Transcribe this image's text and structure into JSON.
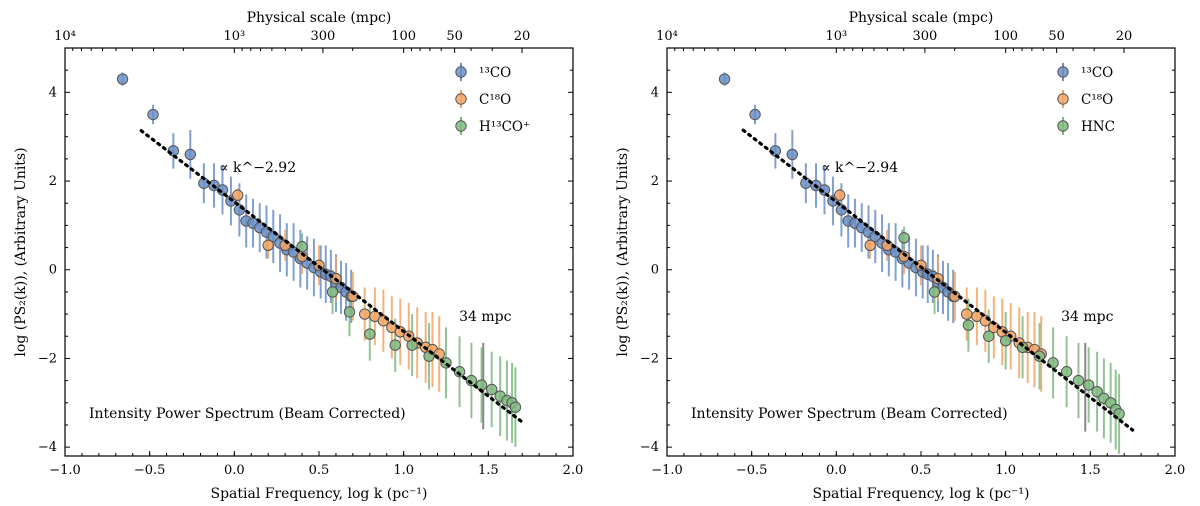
{
  "chart_data": [
    {
      "type": "scatter",
      "title": "",
      "xlabel": "Spatial Frequency, log k (pc⁻¹)",
      "ylabel": "log (PS₂(k)), (Arbitrary Units)",
      "top_xlabel": "Physical scale (mpc)",
      "xlim": [
        -1.0,
        2.0
      ],
      "ylim": [
        -4.2,
        5.0
      ],
      "x_ticks": [
        -1.0,
        -0.5,
        0.0,
        0.5,
        1.0,
        1.5,
        2.0
      ],
      "x_tick_labels": [
        "−1.0",
        "−0.5",
        "0.0",
        "0.5",
        "1.0",
        "1.5",
        "2.0"
      ],
      "y_ticks": [
        -4,
        -2,
        0,
        2,
        4
      ],
      "y_tick_labels": [
        "−4",
        "−2",
        "0",
        "2",
        "4"
      ],
      "top_ticks": [
        {
          "x": -1.0,
          "label": "10⁴"
        },
        {
          "x": 0.0,
          "label": "10³"
        },
        {
          "x": 0.523,
          "label": "300"
        },
        {
          "x": 1.0,
          "label": "100"
        },
        {
          "x": 1.301,
          "label": "50"
        },
        {
          "x": 1.699,
          "label": "20"
        }
      ],
      "annotation_text": "Intensity Power Spectrum (Beam Corrected)",
      "fit": {
        "label": "∝ k^−2.92",
        "slope": -2.92,
        "intercept": 1.53,
        "x_range": [
          -0.55,
          1.7
        ]
      },
      "scale_marker": {
        "x": 1.47,
        "y_range": [
          -3.6,
          -1.65
        ],
        "label": "34 mpc"
      },
      "legend_position": "top-right",
      "series": [
        {
          "name": "13CO",
          "color": "#6a8fc7",
          "points": [
            {
              "x": -0.66,
              "y": 4.3,
              "e": 0.15
            },
            {
              "x": -0.48,
              "y": 3.5,
              "e": 0.22
            },
            {
              "x": -0.36,
              "y": 2.68,
              "e": 0.4
            },
            {
              "x": -0.26,
              "y": 2.6,
              "e": 0.55
            },
            {
              "x": -0.18,
              "y": 1.95,
              "e": 0.45
            },
            {
              "x": -0.12,
              "y": 1.9,
              "e": 0.5
            },
            {
              "x": -0.07,
              "y": 1.8,
              "e": 0.55
            },
            {
              "x": -0.02,
              "y": 1.55,
              "e": 0.55
            },
            {
              "x": 0.03,
              "y": 1.35,
              "e": 0.6
            },
            {
              "x": 0.07,
              "y": 1.1,
              "e": 0.6
            },
            {
              "x": 0.11,
              "y": 1.05,
              "e": 0.55
            },
            {
              "x": 0.15,
              "y": 0.95,
              "e": 0.55
            },
            {
              "x": 0.19,
              "y": 0.85,
              "e": 0.6
            },
            {
              "x": 0.23,
              "y": 0.75,
              "e": 0.6
            },
            {
              "x": 0.27,
              "y": 0.6,
              "e": 0.65
            },
            {
              "x": 0.31,
              "y": 0.45,
              "e": 0.6
            },
            {
              "x": 0.35,
              "y": 0.4,
              "e": 0.65
            },
            {
              "x": 0.39,
              "y": 0.25,
              "e": 0.65
            },
            {
              "x": 0.43,
              "y": 0.15,
              "e": 0.6
            },
            {
              "x": 0.47,
              "y": 0.05,
              "e": 0.65
            },
            {
              "x": 0.51,
              "y": -0.05,
              "e": 0.6
            },
            {
              "x": 0.54,
              "y": -0.1,
              "e": 0.65
            },
            {
              "x": 0.57,
              "y": -0.15,
              "e": 0.6
            },
            {
              "x": 0.6,
              "y": -0.3,
              "e": 0.65
            },
            {
              "x": 0.63,
              "y": -0.4,
              "e": 0.6
            },
            {
              "x": 0.66,
              "y": -0.5,
              "e": 0.65
            },
            {
              "x": 0.69,
              "y": -0.6,
              "e": 0.6
            }
          ]
        },
        {
          "name": "C18O",
          "color": "#f2a464",
          "points": [
            {
              "x": 0.02,
              "y": 1.68,
              "e": 0.15
            },
            {
              "x": 0.2,
              "y": 0.55,
              "e": 0.3
            },
            {
              "x": 0.3,
              "y": 0.55,
              "e": 0.35
            },
            {
              "x": 0.4,
              "y": 0.3,
              "e": 0.4
            },
            {
              "x": 0.5,
              "y": 0.1,
              "e": 0.45
            },
            {
              "x": 0.6,
              "y": -0.2,
              "e": 0.5
            },
            {
              "x": 0.7,
              "y": -0.6,
              "e": 0.55
            },
            {
              "x": 0.77,
              "y": -1.0,
              "e": 0.6
            },
            {
              "x": 0.83,
              "y": -1.05,
              "e": 0.65
            },
            {
              "x": 0.88,
              "y": -1.15,
              "e": 0.7
            },
            {
              "x": 0.93,
              "y": -1.3,
              "e": 0.7
            },
            {
              "x": 0.98,
              "y": -1.4,
              "e": 0.75
            },
            {
              "x": 1.03,
              "y": -1.5,
              "e": 0.75
            },
            {
              "x": 1.08,
              "y": -1.65,
              "e": 0.8
            },
            {
              "x": 1.13,
              "y": -1.75,
              "e": 0.8
            },
            {
              "x": 1.17,
              "y": -1.8,
              "e": 0.85
            },
            {
              "x": 1.21,
              "y": -1.9,
              "e": 0.85
            }
          ]
        },
        {
          "name": "H13CO+",
          "color": "#7fb87f",
          "points": [
            {
              "x": 0.4,
              "y": 0.52,
              "e": 0.3
            },
            {
              "x": 0.58,
              "y": -0.5,
              "e": 0.5
            },
            {
              "x": 0.68,
              "y": -0.95,
              "e": 0.55
            },
            {
              "x": 0.8,
              "y": -1.45,
              "e": 0.6
            },
            {
              "x": 0.95,
              "y": -1.7,
              "e": 0.6
            },
            {
              "x": 1.05,
              "y": -1.7,
              "e": 0.7
            },
            {
              "x": 1.15,
              "y": -1.95,
              "e": 0.75
            },
            {
              "x": 1.25,
              "y": -2.1,
              "e": 0.8
            },
            {
              "x": 1.33,
              "y": -2.3,
              "e": 0.8
            },
            {
              "x": 1.4,
              "y": -2.5,
              "e": 0.85
            },
            {
              "x": 1.46,
              "y": -2.6,
              "e": 0.85
            },
            {
              "x": 1.52,
              "y": -2.7,
              "e": 0.85
            },
            {
              "x": 1.57,
              "y": -2.85,
              "e": 0.9
            },
            {
              "x": 1.61,
              "y": -2.95,
              "e": 0.9
            },
            {
              "x": 1.64,
              "y": -3.0,
              "e": 0.9
            },
            {
              "x": 1.66,
              "y": -3.1,
              "e": 0.9
            }
          ]
        }
      ],
      "legend": [
        "¹³CO",
        "C¹⁸O",
        "H¹³CO⁺"
      ]
    },
    {
      "type": "scatter",
      "title": "",
      "xlabel": "Spatial Frequency, log k (pc⁻¹)",
      "ylabel": "log (PS₂(k)), (Arbitrary Units)",
      "top_xlabel": "Physical scale (mpc)",
      "xlim": [
        -1.0,
        2.0
      ],
      "ylim": [
        -4.2,
        5.0
      ],
      "x_ticks": [
        -1.0,
        -0.5,
        0.0,
        0.5,
        1.0,
        1.5,
        2.0
      ],
      "x_tick_labels": [
        "−1.0",
        "−0.5",
        "0.0",
        "0.5",
        "1.0",
        "1.5",
        "2.0"
      ],
      "y_ticks": [
        -4,
        -2,
        0,
        2,
        4
      ],
      "y_tick_labels": [
        "−4",
        "−2",
        "0",
        "2",
        "4"
      ],
      "top_ticks": [
        {
          "x": -1.0,
          "label": "10⁴"
        },
        {
          "x": 0.0,
          "label": "10³"
        },
        {
          "x": 0.523,
          "label": "300"
        },
        {
          "x": 1.0,
          "label": "100"
        },
        {
          "x": 1.301,
          "label": "50"
        },
        {
          "x": 1.699,
          "label": "20"
        }
      ],
      "annotation_text": "Intensity Power Spectrum (Beam Corrected)",
      "fit": {
        "label": "∝ k^−2.94",
        "slope": -2.94,
        "intercept": 1.53,
        "x_range": [
          -0.55,
          1.75
        ]
      },
      "scale_marker": {
        "x": 1.47,
        "y_range": [
          -3.65,
          -1.65
        ],
        "label": "34 mpc"
      },
      "legend_position": "top-right",
      "series": [
        {
          "name": "13CO",
          "color": "#6a8fc7",
          "points": [
            {
              "x": -0.66,
              "y": 4.3,
              "e": 0.15
            },
            {
              "x": -0.48,
              "y": 3.5,
              "e": 0.22
            },
            {
              "x": -0.36,
              "y": 2.68,
              "e": 0.4
            },
            {
              "x": -0.26,
              "y": 2.6,
              "e": 0.55
            },
            {
              "x": -0.18,
              "y": 1.95,
              "e": 0.45
            },
            {
              "x": -0.12,
              "y": 1.9,
              "e": 0.5
            },
            {
              "x": -0.07,
              "y": 1.8,
              "e": 0.55
            },
            {
              "x": -0.02,
              "y": 1.55,
              "e": 0.55
            },
            {
              "x": 0.03,
              "y": 1.35,
              "e": 0.6
            },
            {
              "x": 0.07,
              "y": 1.1,
              "e": 0.6
            },
            {
              "x": 0.11,
              "y": 1.05,
              "e": 0.55
            },
            {
              "x": 0.15,
              "y": 0.95,
              "e": 0.55
            },
            {
              "x": 0.19,
              "y": 0.85,
              "e": 0.6
            },
            {
              "x": 0.23,
              "y": 0.75,
              "e": 0.6
            },
            {
              "x": 0.27,
              "y": 0.6,
              "e": 0.65
            },
            {
              "x": 0.31,
              "y": 0.45,
              "e": 0.6
            },
            {
              "x": 0.35,
              "y": 0.4,
              "e": 0.65
            },
            {
              "x": 0.39,
              "y": 0.25,
              "e": 0.65
            },
            {
              "x": 0.43,
              "y": 0.15,
              "e": 0.6
            },
            {
              "x": 0.47,
              "y": 0.05,
              "e": 0.65
            },
            {
              "x": 0.51,
              "y": -0.05,
              "e": 0.6
            },
            {
              "x": 0.54,
              "y": -0.1,
              "e": 0.65
            },
            {
              "x": 0.57,
              "y": -0.15,
              "e": 0.6
            },
            {
              "x": 0.6,
              "y": -0.3,
              "e": 0.65
            },
            {
              "x": 0.63,
              "y": -0.4,
              "e": 0.6
            },
            {
              "x": 0.66,
              "y": -0.5,
              "e": 0.65
            },
            {
              "x": 0.69,
              "y": -0.6,
              "e": 0.6
            }
          ]
        },
        {
          "name": "C18O",
          "color": "#f2a464",
          "points": [
            {
              "x": 0.02,
              "y": 1.68,
              "e": 0.15
            },
            {
              "x": 0.2,
              "y": 0.55,
              "e": 0.3
            },
            {
              "x": 0.3,
              "y": 0.55,
              "e": 0.35
            },
            {
              "x": 0.4,
              "y": 0.3,
              "e": 0.4
            },
            {
              "x": 0.5,
              "y": 0.1,
              "e": 0.45
            },
            {
              "x": 0.6,
              "y": -0.2,
              "e": 0.5
            },
            {
              "x": 0.7,
              "y": -0.6,
              "e": 0.55
            },
            {
              "x": 0.77,
              "y": -1.0,
              "e": 0.6
            },
            {
              "x": 0.83,
              "y": -1.05,
              "e": 0.65
            },
            {
              "x": 0.88,
              "y": -1.15,
              "e": 0.7
            },
            {
              "x": 0.93,
              "y": -1.3,
              "e": 0.7
            },
            {
              "x": 0.98,
              "y": -1.4,
              "e": 0.75
            },
            {
              "x": 1.03,
              "y": -1.5,
              "e": 0.75
            },
            {
              "x": 1.08,
              "y": -1.65,
              "e": 0.8
            },
            {
              "x": 1.13,
              "y": -1.75,
              "e": 0.8
            },
            {
              "x": 1.17,
              "y": -1.8,
              "e": 0.85
            },
            {
              "x": 1.21,
              "y": -1.9,
              "e": 0.85
            }
          ]
        },
        {
          "name": "HNC",
          "color": "#7fb87f",
          "points": [
            {
              "x": 0.4,
              "y": 0.72,
              "e": 0.25
            },
            {
              "x": 0.58,
              "y": -0.5,
              "e": 0.5
            },
            {
              "x": 0.78,
              "y": -1.25,
              "e": 0.6
            },
            {
              "x": 0.9,
              "y": -1.5,
              "e": 0.6
            },
            {
              "x": 1.0,
              "y": -1.6,
              "e": 0.65
            },
            {
              "x": 1.1,
              "y": -1.75,
              "e": 0.7
            },
            {
              "x": 1.2,
              "y": -1.95,
              "e": 0.75
            },
            {
              "x": 1.28,
              "y": -2.1,
              "e": 0.8
            },
            {
              "x": 1.36,
              "y": -2.3,
              "e": 0.8
            },
            {
              "x": 1.43,
              "y": -2.5,
              "e": 0.85
            },
            {
              "x": 1.49,
              "y": -2.6,
              "e": 0.85
            },
            {
              "x": 1.54,
              "y": -2.75,
              "e": 0.9
            },
            {
              "x": 1.58,
              "y": -2.9,
              "e": 0.9
            },
            {
              "x": 1.62,
              "y": -3.0,
              "e": 0.9
            },
            {
              "x": 1.65,
              "y": -3.15,
              "e": 0.9
            },
            {
              "x": 1.67,
              "y": -3.25,
              "e": 0.9
            }
          ]
        }
      ],
      "legend": [
        "¹³CO",
        "C¹⁸O",
        "HNC"
      ]
    }
  ]
}
